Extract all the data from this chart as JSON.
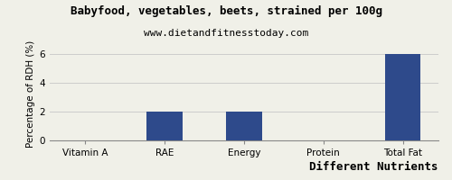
{
  "title": "Babyfood, vegetables, beets, strained per 100g",
  "subtitle": "www.dietandfitnesstoday.com",
  "xlabel": "Different Nutrients",
  "ylabel": "Percentage of RDH (%)",
  "categories": [
    "Vitamin A",
    "RAE",
    "Energy",
    "Protein",
    "Total Fat"
  ],
  "values": [
    0,
    2,
    2,
    0,
    6
  ],
  "bar_color": "#2E4A8B",
  "ylim": [
    0,
    6.5
  ],
  "yticks": [
    0,
    2,
    4,
    6
  ],
  "background_color": "#f0f0e8",
  "grid_color": "#cccccc",
  "title_fontsize": 9,
  "subtitle_fontsize": 8,
  "xlabel_fontsize": 9,
  "ylabel_fontsize": 7.5,
  "tick_fontsize": 7.5,
  "bar_width": 0.45
}
